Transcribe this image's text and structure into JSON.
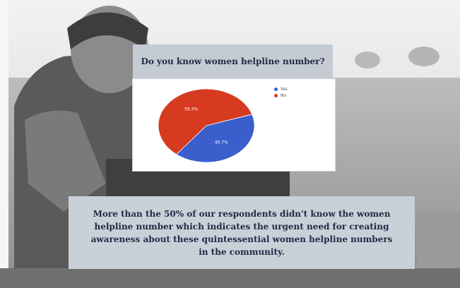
{
  "question": "Do you know  women helpline number?",
  "caption": "More than the 50% of our respondents didn't know the women helpline number which indicates the urgent need for creating awareness about these quintessential women helpline numbers in the community.",
  "chart_data": {
    "type": "pie",
    "title": "",
    "slices": [
      {
        "label": "Yes",
        "value": 40.7,
        "color": "#3a5fcd"
      },
      {
        "label": "No",
        "value": 59.3,
        "color": "#d63a1f"
      }
    ],
    "data_labels": [
      "40.7%",
      "59.3%"
    ],
    "legend_placement": "top-right"
  }
}
